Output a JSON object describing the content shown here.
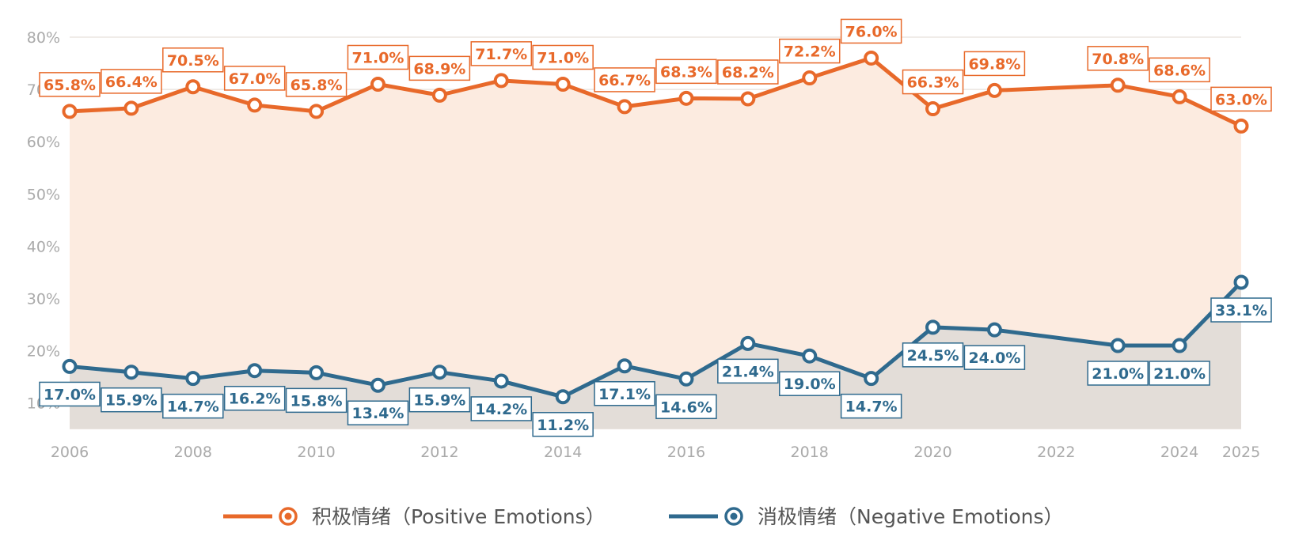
{
  "chart_data": {
    "type": "line",
    "title": "",
    "xlabel": "",
    "ylabel": "",
    "ylim": [
      5,
      80
    ],
    "y_ticks": [
      10,
      20,
      30,
      40,
      50,
      60,
      70,
      80
    ],
    "y_tick_labels": [
      "10%",
      "20%",
      "30%",
      "40%",
      "50%",
      "60%",
      "70%",
      "80%"
    ],
    "x_range": [
      2006,
      2025
    ],
    "x_ticks": [
      2006,
      2008,
      2010,
      2012,
      2014,
      2016,
      2018,
      2020,
      2022,
      2024,
      2025
    ],
    "x_tick_labels": [
      "2006",
      "2008",
      "2010",
      "2012",
      "2014",
      "2016",
      "2018",
      "2020",
      "2022",
      "2024",
      "2025"
    ],
    "grid": "horizontal",
    "legend_position": "bottom",
    "series": [
      {
        "name": "积极情绪（Positive Emotions）",
        "color": "#e8692a",
        "fill_color": "#fcebe0",
        "label_position": "above",
        "x": [
          2006,
          2007,
          2008,
          2009,
          2010,
          2011,
          2012,
          2013,
          2014,
          2015,
          2016,
          2017,
          2018,
          2019,
          2020,
          2021,
          2023,
          2024,
          2025
        ],
        "values": [
          65.8,
          66.4,
          70.5,
          67.0,
          65.8,
          71.0,
          68.9,
          71.7,
          71.0,
          66.7,
          68.3,
          68.2,
          72.2,
          76.0,
          66.3,
          69.8,
          70.8,
          68.6,
          63.0
        ],
        "labels": [
          "65.8%",
          "66.4%",
          "70.5%",
          "67.0%",
          "65.8%",
          "71.0%",
          "68.9%",
          "71.7%",
          "71.0%",
          "66.7%",
          "68.3%",
          "68.2%",
          "72.2%",
          "76.0%",
          "66.3%",
          "69.8%",
          "70.8%",
          "68.6%",
          "63.0%"
        ]
      },
      {
        "name": "消极情绪（Negative Emotions）",
        "color": "#2f6a8e",
        "fill_color": "#e3ddd8",
        "label_position": "below",
        "x": [
          2006,
          2007,
          2008,
          2009,
          2010,
          2011,
          2012,
          2013,
          2014,
          2015,
          2016,
          2017,
          2018,
          2019,
          2020,
          2021,
          2023,
          2024,
          2025
        ],
        "values": [
          17.0,
          15.9,
          14.7,
          16.2,
          15.8,
          13.4,
          15.9,
          14.2,
          11.2,
          17.1,
          14.6,
          21.4,
          19.0,
          14.7,
          24.5,
          24.0,
          21.0,
          21.0,
          33.1
        ],
        "labels": [
          "17.0%",
          "15.9%",
          "14.7%",
          "16.2%",
          "15.8%",
          "13.4%",
          "15.9%",
          "14.2%",
          "11.2%",
          "17.1%",
          "14.6%",
          "21.4%",
          "19.0%",
          "14.7%",
          "24.5%",
          "24.0%",
          "21.0%",
          "21.0%",
          "33.1%"
        ]
      }
    ]
  }
}
